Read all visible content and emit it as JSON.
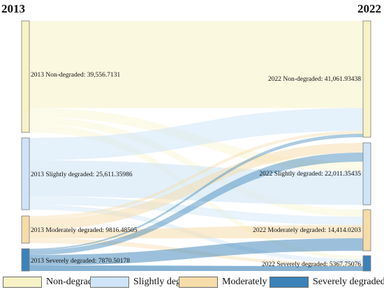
{
  "years": {
    "left": "2013",
    "right": "2022"
  },
  "colors": {
    "non": "#f8f3c6",
    "slight": "#cfe5f7",
    "moderate": "#f6dca9",
    "severe": "#3a82b7",
    "node_border": "#7a7a7a"
  },
  "left_nodes": [
    {
      "id": "non",
      "label": "2013 Non-degraded: 39,556.7131",
      "value": 39556.7131
    },
    {
      "id": "slight",
      "label": "2013 Slightly degraded: 25,611.35986",
      "value": 25611.35986
    },
    {
      "id": "moderate",
      "label": "2013 Moderately degraded: 9816.48505",
      "value": 9816.48505
    },
    {
      "id": "severe",
      "label": "2013 Severely degraded: 7870.50178",
      "value": 7870.50178
    }
  ],
  "right_nodes": [
    {
      "id": "non",
      "label": "2022 Non-degraded: 41,061.93438",
      "value": 41061.93438
    },
    {
      "id": "slight",
      "label": "2022 Slightly degraded: 22,011.35435",
      "value": 22011.35435
    },
    {
      "id": "moderate",
      "label": "2022 Moderately degraded: 14,414.0203",
      "value": 14414.0203
    },
    {
      "id": "severe",
      "label": "2022 Severely degraded: 5367.75076",
      "value": 5367.75076
    }
  ],
  "legend": [
    {
      "id": "non",
      "label": "Non-degraded"
    },
    {
      "id": "slight",
      "label": "Slightly degraded"
    },
    {
      "id": "moderate",
      "label": "Moderately degraded"
    },
    {
      "id": "severe",
      "label": "Severely degraded"
    }
  ]
}
